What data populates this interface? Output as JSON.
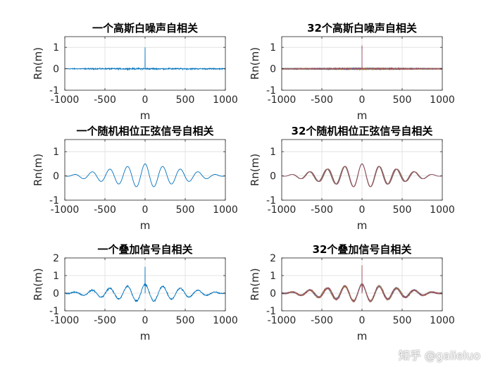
{
  "watermark": "知乎 @galieluo",
  "colors": {
    "axes": "#262626",
    "grid": "#dedede",
    "palette": [
      "#0072BD",
      "#D95319",
      "#EDB120",
      "#7E2F8E",
      "#77AC30",
      "#4DBEEE",
      "#A2142F"
    ]
  },
  "chart_data": [
    {
      "type": "line",
      "title": "一个高斯白噪声自相关",
      "xlabel": "m",
      "ylabel": "Rn(m)",
      "xlim": [
        -1000,
        1000
      ],
      "ylim": [
        -1,
        1.5
      ],
      "xticks": [
        -1000,
        -500,
        0,
        500,
        1000
      ],
      "yticks": [
        -1,
        0,
        1
      ],
      "grid": true,
      "signal": "noise",
      "runs": 1,
      "peak": 1,
      "noise_amplitude": 0.03
    },
    {
      "type": "line",
      "title": "32个高斯白噪声自相关",
      "xlabel": "m",
      "ylabel": "Rn(m)",
      "xlim": [
        -1000,
        1000
      ],
      "ylim": [
        -1,
        1.5
      ],
      "xticks": [
        -1000,
        -500,
        0,
        500,
        1000
      ],
      "yticks": [
        -1,
        0,
        1
      ],
      "grid": true,
      "signal": "noise",
      "runs": 32,
      "peak": 1,
      "noise_amplitude": 0.03
    },
    {
      "type": "line",
      "title": "一个随机相位正弦信号自相关",
      "xlabel": "m",
      "ylabel": "Rn(m)",
      "xlim": [
        -1000,
        1000
      ],
      "ylim": [
        -1,
        1.5
      ],
      "xticks": [
        -1000,
        -500,
        0,
        500,
        1000
      ],
      "yticks": [
        -1,
        0,
        1
      ],
      "grid": true,
      "signal": "sine",
      "runs": 1,
      "sine_amplitude": 0.5,
      "period": 220
    },
    {
      "type": "line",
      "title": "32个随机相位正弦信号自相关",
      "xlabel": "m",
      "ylabel": "Rn(m)",
      "xlim": [
        -1000,
        1000
      ],
      "ylim": [
        -1,
        1.5
      ],
      "xticks": [
        -1000,
        -500,
        0,
        500,
        1000
      ],
      "yticks": [
        -1,
        0,
        1
      ],
      "grid": true,
      "signal": "sine",
      "runs": 32,
      "sine_amplitude": 0.5,
      "period": 220
    },
    {
      "type": "line",
      "title": "一个叠加信号自相关",
      "xlabel": "m",
      "ylabel": "Rn(m)",
      "xlim": [
        -1000,
        1000
      ],
      "ylim": [
        -1,
        2
      ],
      "xticks": [
        -1000,
        -500,
        0,
        500,
        1000
      ],
      "yticks": [
        -1,
        0,
        1,
        2
      ],
      "grid": true,
      "signal": "sum",
      "runs": 1,
      "peak": 1.5,
      "sine_amplitude": 0.5,
      "period": 220,
      "noise_amplitude": 0.04
    },
    {
      "type": "line",
      "title": "32个叠加信号自相关",
      "xlabel": "m",
      "ylabel": "Rn(m)",
      "xlim": [
        -1000,
        1000
      ],
      "ylim": [
        -1,
        2
      ],
      "xticks": [
        -1000,
        -500,
        0,
        500,
        1000
      ],
      "yticks": [
        -1,
        0,
        1,
        2
      ],
      "grid": true,
      "signal": "sum",
      "runs": 32,
      "peak": 1.5,
      "sine_amplitude": 0.5,
      "period": 220,
      "noise_amplitude": 0.04
    }
  ]
}
